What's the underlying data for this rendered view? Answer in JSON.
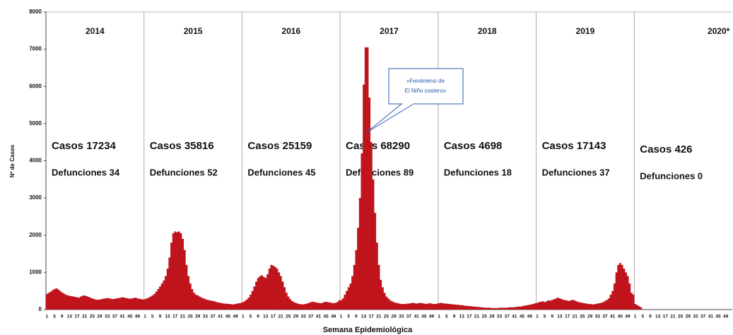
{
  "chart_data": {
    "type": "bar",
    "color": "#c0141c",
    "ylabel": "Nº de Casos",
    "xlabel": "Semana Epidemiológica",
    "annotation": [
      "«Fenómeno de",
      "El Niño costero»"
    ],
    "years": [
      {
        "label": "2014",
        "cases": "Casos 17234",
        "deaths": "Defunciones 34"
      },
      {
        "label": "2015",
        "cases": "Casos 35816",
        "deaths": "Defunciones 52"
      },
      {
        "label": "2016",
        "cases": "Casos 25159",
        "deaths": "Defunciones 45"
      },
      {
        "label": "2017",
        "cases": "Casos 68290",
        "deaths": "Defunciones 89"
      },
      {
        "label": "2018",
        "cases": "Casos 4698",
        "deaths": "Defunciones 18"
      },
      {
        "label": "2019",
        "cases": "Casos  17143",
        "deaths": "Defunciones 37"
      },
      {
        "label": "2020*",
        "cases": "Casos  426",
        "deaths": "Defunciones 0"
      }
    ],
    "ylim": [
      0,
      8000
    ],
    "yticks": [
      0,
      1000,
      2000,
      3000,
      4000,
      5000,
      6000,
      7000,
      8000
    ],
    "grid": false,
    "categories": [
      1,
      null,
      null,
      null,
      5,
      null,
      null,
      null,
      9,
      null,
      null,
      null,
      13,
      null,
      null,
      null,
      17,
      null,
      null,
      null,
      21,
      null,
      null,
      null,
      25,
      null,
      null,
      null,
      29,
      null,
      null,
      null,
      33,
      null,
      null,
      null,
      37,
      null,
      null,
      null,
      41,
      null,
      null,
      null,
      45,
      null,
      null,
      null,
      49,
      null,
      null,
      null,
      1,
      null,
      null,
      null,
      5,
      null,
      null,
      null,
      9,
      null,
      null,
      null,
      13,
      null,
      null,
      null,
      17,
      null,
      null,
      null,
      21,
      null,
      null,
      null,
      25,
      null,
      null,
      null,
      29,
      null,
      null,
      null,
      33,
      null,
      null,
      null,
      37,
      null,
      null,
      null,
      41,
      null,
      null,
      null,
      45,
      null,
      null,
      null,
      49,
      null,
      null,
      null,
      1,
      null,
      null,
      null,
      5,
      null,
      null,
      null,
      9,
      null,
      null,
      null,
      13,
      null,
      null,
      null,
      17,
      null,
      null,
      null,
      21,
      null,
      null,
      null,
      25,
      null,
      null,
      null,
      29,
      null,
      null,
      null,
      33,
      null,
      null,
      null,
      37,
      null,
      null,
      null,
      41,
      null,
      null,
      null,
      45,
      null,
      null,
      null,
      49,
      null,
      null,
      null,
      1,
      null,
      null,
      null,
      5,
      null,
      null,
      null,
      9,
      null,
      null,
      null,
      13,
      null,
      null,
      null,
      17,
      null,
      null,
      null,
      21,
      null,
      null,
      null,
      25,
      null,
      null,
      null,
      29,
      null,
      null,
      null,
      33,
      null,
      null,
      null,
      37,
      null,
      null,
      null,
      41,
      null,
      null,
      null,
      45,
      null,
      null,
      null,
      49,
      null,
      null,
      null,
      1,
      null,
      null,
      null,
      5,
      null,
      null,
      null,
      9,
      null,
      null,
      null,
      13,
      null,
      null,
      null,
      17,
      null,
      null,
      null,
      21,
      null,
      null,
      null,
      25,
      null,
      null,
      null,
      29,
      null,
      null,
      null,
      33,
      null,
      null,
      null,
      37,
      null,
      null,
      null,
      41,
      null,
      null,
      null,
      45,
      null,
      null,
      null,
      49,
      null,
      null,
      null,
      1,
      null,
      null,
      null,
      5,
      null,
      null,
      null,
      9,
      null,
      null,
      null,
      13,
      null,
      null,
      null,
      17,
      null,
      null,
      null,
      21,
      null,
      null,
      null,
      25,
      null,
      null,
      null,
      29,
      null,
      null,
      null,
      33,
      null,
      null,
      null,
      37,
      null,
      null,
      null,
      41,
      null,
      null,
      null,
      45,
      null,
      null,
      null,
      49,
      null,
      null,
      null,
      1,
      null,
      null,
      null,
      5,
      null,
      null,
      null,
      9,
      null,
      null,
      null,
      13,
      null,
      null,
      null,
      17,
      null,
      null,
      null,
      21,
      null,
      null,
      null,
      25,
      null,
      null,
      null,
      29,
      null,
      null,
      null,
      33,
      null,
      null,
      null,
      37,
      null,
      null,
      null,
      41,
      null,
      null,
      null,
      45,
      null,
      null,
      null,
      49,
      null,
      null,
      null
    ],
    "values": [
      420,
      450,
      480,
      520,
      550,
      570,
      540,
      500,
      460,
      430,
      400,
      380,
      370,
      360,
      350,
      340,
      330,
      320,
      350,
      370,
      380,
      360,
      340,
      320,
      300,
      280,
      270,
      260,
      270,
      280,
      290,
      300,
      310,
      300,
      290,
      280,
      290,
      300,
      310,
      320,
      330,
      320,
      310,
      300,
      290,
      300,
      310,
      320,
      300,
      290,
      280,
      270,
      280,
      300,
      320,
      350,
      380,
      420,
      480,
      550,
      620,
      700,
      780,
      900,
      1100,
      1400,
      1800,
      2050,
      2100,
      2080,
      2100,
      2050,
      1900,
      1600,
      1200,
      900,
      700,
      550,
      450,
      400,
      380,
      350,
      320,
      300,
      280,
      260,
      250,
      240,
      230,
      220,
      200,
      190,
      180,
      170,
      160,
      160,
      150,
      150,
      140,
      140,
      150,
      160,
      170,
      180,
      200,
      230,
      270,
      320,
      400,
      500,
      620,
      750,
      850,
      900,
      920,
      880,
      850,
      950,
      1100,
      1200,
      1180,
      1150,
      1100,
      1000,
      900,
      750,
      600,
      450,
      350,
      280,
      230,
      200,
      180,
      160,
      150,
      140,
      140,
      150,
      160,
      180,
      200,
      210,
      200,
      190,
      180,
      170,
      180,
      200,
      210,
      200,
      190,
      180,
      170,
      180,
      200,
      250,
      250,
      300,
      400,
      500,
      600,
      700,
      900,
      1200,
      1600,
      2200,
      3000,
      4200,
      6050,
      7050,
      7050,
      5700,
      4500,
      3500,
      2600,
      1800,
      1200,
      800,
      600,
      450,
      350,
      300,
      250,
      220,
      200,
      180,
      170,
      160,
      150,
      150,
      150,
      160,
      160,
      170,
      180,
      170,
      160,
      170,
      180,
      170,
      160,
      150,
      160,
      170,
      160,
      150,
      150,
      160,
      170,
      180,
      170,
      160,
      160,
      150,
      150,
      140,
      140,
      130,
      130,
      120,
      120,
      110,
      100,
      100,
      90,
      90,
      80,
      80,
      70,
      70,
      60,
      60,
      50,
      50,
      50,
      50,
      40,
      40,
      40,
      40,
      50,
      50,
      50,
      50,
      50,
      60,
      60,
      60,
      70,
      70,
      80,
      80,
      90,
      100,
      110,
      120,
      130,
      140,
      150,
      170,
      180,
      200,
      210,
      220,
      200,
      220,
      250,
      240,
      260,
      280,
      300,
      320,
      300,
      280,
      260,
      250,
      240,
      230,
      250,
      260,
      240,
      220,
      200,
      190,
      180,
      170,
      160,
      150,
      150,
      140,
      140,
      150,
      160,
      170,
      180,
      200,
      230,
      260,
      300,
      400,
      500,
      700,
      1000,
      1200,
      1250,
      1200,
      1100,
      1000,
      900,
      700,
      450,
      400,
      150,
      120,
      90,
      60,
      null,
      null,
      null,
      null,
      null,
      null,
      null,
      null,
      null,
      null,
      null,
      null,
      null,
      null,
      null,
      null,
      null,
      null,
      null,
      null,
      null,
      null,
      null,
      null,
      null,
      null,
      null,
      null,
      null,
      null,
      null,
      null,
      null,
      null,
      null,
      null,
      null,
      null,
      null,
      null,
      null,
      null,
      null,
      null,
      null,
      null,
      null,
      null
    ]
  }
}
